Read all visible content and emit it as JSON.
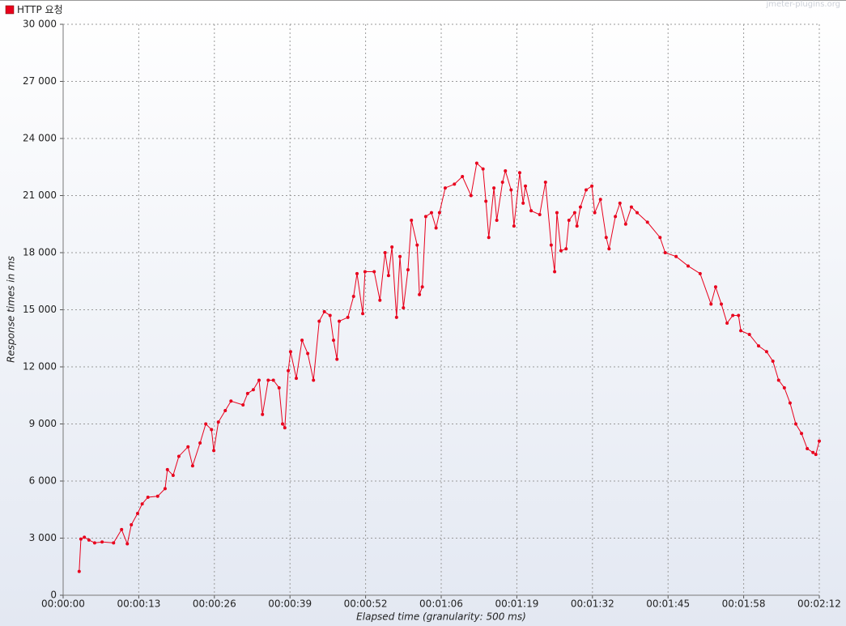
{
  "chart_data": {
    "type": "line",
    "watermark": "jmeter-plugins.org",
    "xlabel": "Elapsed time (granularity: 500 ms)",
    "ylabel": "Response times in ms",
    "legend": "top-left",
    "grid": true,
    "x": [
      2.8,
      3.1,
      3.7,
      4.5,
      5.5,
      6.8,
      8.8,
      10.2,
      11.2,
      11.9,
      13,
      13.8,
      14.8,
      16.5,
      17.8,
      18.2,
      19.2,
      20.2,
      21.8,
      22.6,
      23.9,
      24.9,
      25.9,
      26.3,
      27.1,
      28.3,
      29.3,
      31.4,
      32.2,
      33.2,
      34.2,
      34.8,
      35.8,
      36.7,
      37.7,
      38.3,
      38.7,
      39.3,
      39.7,
      40.7,
      41.7,
      42.7,
      43.7,
      44.7,
      45.6,
      46.6,
      47.2,
      47.8,
      48.2,
      49.7,
      50.7,
      51.3,
      52.3,
      52.7,
      54.3,
      55.3,
      56.2,
      56.8,
      57.4,
      58.2,
      58.8,
      59.4,
      60.2,
      60.8,
      61.8,
      62.2,
      62.7,
      63.3,
      64.3,
      65.1,
      65.7,
      66.7,
      68.3,
      69.7,
      71.2,
      72.2,
      73.3,
      73.8,
      74.3,
      75.2,
      75.7,
      76.7,
      77.2,
      78.2,
      78.7,
      79.7,
      80.3,
      80.7,
      81.7,
      83.2,
      84.2,
      85.2,
      85.8,
      86.2,
      86.9,
      87.8,
      88.3,
      89.3,
      89.7,
      90.3,
      91.3,
      92.3,
      92.8,
      93.8,
      94.8,
      95.3,
      96.4,
      97.2,
      98.2,
      99.2,
      100.2,
      102,
      104.2,
      105.1,
      107,
      109.1,
      111.2,
      113.1,
      113.9,
      114.9,
      115.9,
      116.9,
      117.9,
      118.3,
      119.8,
      121.4,
      122.8,
      123.9,
      124.9,
      125.9,
      126.9,
      127.9,
      128.9,
      129.9,
      130.9,
      131.4,
      132
    ],
    "series": [
      {
        "name": "HTTP 요청",
        "color": "#e8001c",
        "values": [
          1250,
          2950,
          3050,
          2900,
          2750,
          2800,
          2750,
          3450,
          2700,
          3700,
          4300,
          4800,
          5150,
          5200,
          5600,
          6600,
          6300,
          7300,
          7800,
          6800,
          8000,
          9000,
          8700,
          7600,
          9100,
          9700,
          10200,
          10000,
          10600,
          10800,
          11300,
          9500,
          11300,
          11300,
          10900,
          9000,
          8800,
          11800,
          12800,
          11400,
          13400,
          12700,
          11300,
          14400,
          14900,
          14700,
          13400,
          12400,
          14400,
          14600,
          15700,
          16900,
          14800,
          17000,
          17000,
          15500,
          18000,
          16800,
          18300,
          14600,
          17800,
          15100,
          17100,
          19700,
          18400,
          15800,
          16200,
          19900,
          20100,
          19300,
          20100,
          21400,
          21600,
          22000,
          21000,
          22700,
          22400,
          20700,
          18800,
          21400,
          19700,
          21700,
          22300,
          21300,
          19400,
          22200,
          20600,
          21500,
          20200,
          20000,
          21700,
          18400,
          17000,
          20100,
          18100,
          18200,
          19700,
          20100,
          19400,
          20400,
          21300,
          21500,
          20100,
          20800,
          18800,
          18200,
          19900,
          20600,
          19500,
          20400,
          20100,
          19600,
          18800,
          18000,
          17800,
          17300,
          16900,
          15300,
          16200,
          15300,
          14300,
          14700,
          14700,
          13900,
          13700,
          13100,
          12800,
          12300,
          11300,
          10900,
          10100,
          9000,
          8500,
          7700,
          7500,
          7400,
          8100
        ]
      }
    ],
    "xlim": [
      0,
      132
    ],
    "xticks": [
      {
        "value": 0,
        "label": "00:00:00"
      },
      {
        "value": 13.2,
        "label": "00:00:13"
      },
      {
        "value": 26.4,
        "label": "00:00:26"
      },
      {
        "value": 39.6,
        "label": "00:00:39"
      },
      {
        "value": 52.8,
        "label": "00:00:52"
      },
      {
        "value": 66,
        "label": "00:01:06"
      },
      {
        "value": 79.2,
        "label": "00:01:19"
      },
      {
        "value": 92.4,
        "label": "00:01:32"
      },
      {
        "value": 105.6,
        "label": "00:01:45"
      },
      {
        "value": 118.8,
        "label": "00:01:58"
      },
      {
        "value": 132,
        "label": "00:02:12"
      }
    ],
    "ylim": [
      0,
      30000
    ],
    "yticks": [
      0,
      {
        "value": 3000,
        "label": "3 000"
      },
      {
        "value": 6000,
        "label": "6 000"
      },
      {
        "value": 9000,
        "label": "9 000"
      },
      {
        "value": 12000,
        "label": "12 000"
      },
      {
        "value": 15000,
        "label": "15 000"
      },
      {
        "value": 18000,
        "label": "18 000"
      },
      {
        "value": 21000,
        "label": "21 000"
      },
      {
        "value": 24000,
        "label": "24 000"
      },
      {
        "value": 27000,
        "label": "27 000"
      },
      {
        "value": 30000,
        "label": "30 000"
      }
    ]
  }
}
